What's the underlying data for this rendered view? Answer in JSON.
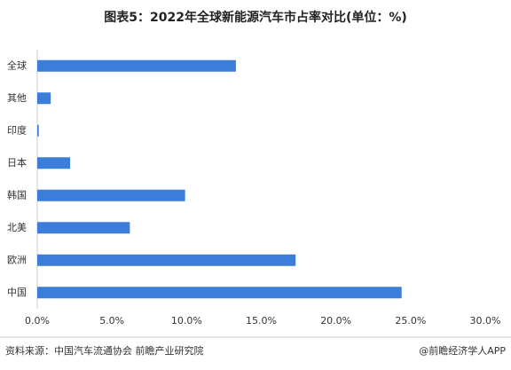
{
  "chart_data": {
    "type": "bar",
    "orientation": "horizontal",
    "title": "图表5：2022年全球新能源汽车市占率对比(单位：%)",
    "categories": [
      "全球",
      "其他",
      "印度",
      "日本",
      "韩国",
      "北美",
      "欧洲",
      "中国"
    ],
    "values": [
      13.3,
      0.9,
      0.1,
      2.2,
      9.9,
      6.2,
      17.3,
      24.4
    ],
    "color": "#3b7dd8",
    "xlim": [
      0,
      30
    ],
    "xticks": [
      {
        "value": 0,
        "label": "0.0%"
      },
      {
        "value": 5,
        "label": "5.0%"
      },
      {
        "value": 10,
        "label": "10.0%"
      },
      {
        "value": 15,
        "label": "15.0%"
      },
      {
        "value": 20,
        "label": "20.0%"
      },
      {
        "value": 25,
        "label": "25.0%"
      },
      {
        "value": 30,
        "label": "30.0%"
      }
    ],
    "grid": false,
    "source": "资料来源：中国汽车流通协会 前瞻产业研究院",
    "brand": "@前瞻经济学人APP"
  }
}
